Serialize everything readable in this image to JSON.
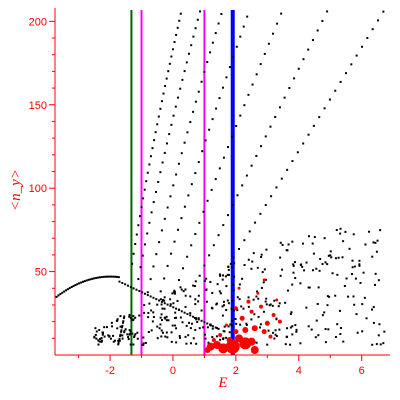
{
  "chart_data": {
    "type": "scatter",
    "xlabel": "E",
    "ylabel": "<n_y>",
    "xlim": [
      -3.75,
      6.9
    ],
    "ylim": [
      0,
      208
    ],
    "x_ticks": [
      -2,
      0,
      2,
      4,
      6
    ],
    "y_ticks": [
      50,
      100,
      150,
      200
    ],
    "grid": false,
    "colors": {
      "axis": "#ff0000",
      "levels": "#000000",
      "states": "#ff0000",
      "line_green": "#006400",
      "line_magenta": "#ff00ff",
      "line_blue": "#0000ff"
    },
    "vertical_lines": [
      {
        "x": -1.32,
        "color": "#006400",
        "width": 2
      },
      {
        "x": -1.0,
        "color": "#ff00ff",
        "width": 2
      },
      {
        "x": 1.0,
        "color": "#ff00ff",
        "width": 2
      },
      {
        "x": 1.9,
        "color": "#0000ff",
        "width": 4
      }
    ],
    "curves": [
      {
        "E0": -1.3,
        "a": 20,
        "p": 0.78,
        "step": 0.05
      },
      {
        "E0": -1.1,
        "a": 17,
        "p": 0.8,
        "step": 0.07
      },
      {
        "E0": -0.8,
        "a": 14.5,
        "p": 0.83,
        "step": 0.09
      },
      {
        "E0": -0.5,
        "a": 12,
        "p": 0.86,
        "step": 0.11
      },
      {
        "E0": -0.2,
        "a": 9.5,
        "p": 0.9,
        "step": 0.13
      },
      {
        "E0": 0.1,
        "a": 7,
        "p": 0.95,
        "step": 0.15
      },
      {
        "E0": 0.4,
        "a": 5,
        "p": 1.0,
        "step": 0.17
      }
    ],
    "left_arc": {
      "x_from": -3.7,
      "x_to": -1.7,
      "peak_x": -2.0,
      "peak_y": 47,
      "left_y": 36
    },
    "states": [
      {
        "x": 1.9,
        "y": 5,
        "r": 7
      },
      {
        "x": 2.3,
        "y": 7,
        "r": 6
      },
      {
        "x": 1.6,
        "y": 4,
        "r": 5
      },
      {
        "x": 1.2,
        "y": 5,
        "r": 4
      },
      {
        "x": 1.4,
        "y": 6,
        "r": 4
      },
      {
        "x": 2.1,
        "y": 10,
        "r": 4
      },
      {
        "x": 2.5,
        "y": 8,
        "r": 4
      },
      {
        "x": 1.8,
        "y": 9,
        "r": 3
      },
      {
        "x": 1.1,
        "y": 3,
        "r": 3
      },
      {
        "x": 2.3,
        "y": 15,
        "r": 3
      },
      {
        "x": 2.6,
        "y": 16,
        "r": 3
      },
      {
        "x": 2.9,
        "y": 14,
        "r": 2.5
      },
      {
        "x": 3.0,
        "y": 19,
        "r": 2.5
      },
      {
        "x": 2.2,
        "y": 22,
        "r": 2.5
      },
      {
        "x": 2.5,
        "y": 26,
        "r": 2
      },
      {
        "x": 2.8,
        "y": 29,
        "r": 2
      },
      {
        "x": 3.2,
        "y": 24,
        "r": 2
      },
      {
        "x": 2.4,
        "y": 32,
        "r": 2
      },
      {
        "x": 2.0,
        "y": 28,
        "r": 2
      },
      {
        "x": 2.7,
        "y": 37,
        "r": 1.5
      },
      {
        "x": 3.3,
        "y": 33,
        "r": 1.5
      },
      {
        "x": 2.9,
        "y": 45,
        "r": 1.5
      },
      {
        "x": 2.1,
        "y": 40,
        "r": 1.5
      },
      {
        "x": 1.5,
        "y": 12,
        "r": 2
      },
      {
        "x": 1.3,
        "y": 9,
        "r": 2
      },
      {
        "x": 2.0,
        "y": 14,
        "r": 2.5
      },
      {
        "x": 3.4,
        "y": 20,
        "r": 2
      },
      {
        "x": 1.7,
        "y": 18,
        "r": 1.5
      },
      {
        "x": 3.1,
        "y": 11,
        "r": 2
      },
      {
        "x": 2.6,
        "y": 3,
        "r": 4
      }
    ]
  }
}
